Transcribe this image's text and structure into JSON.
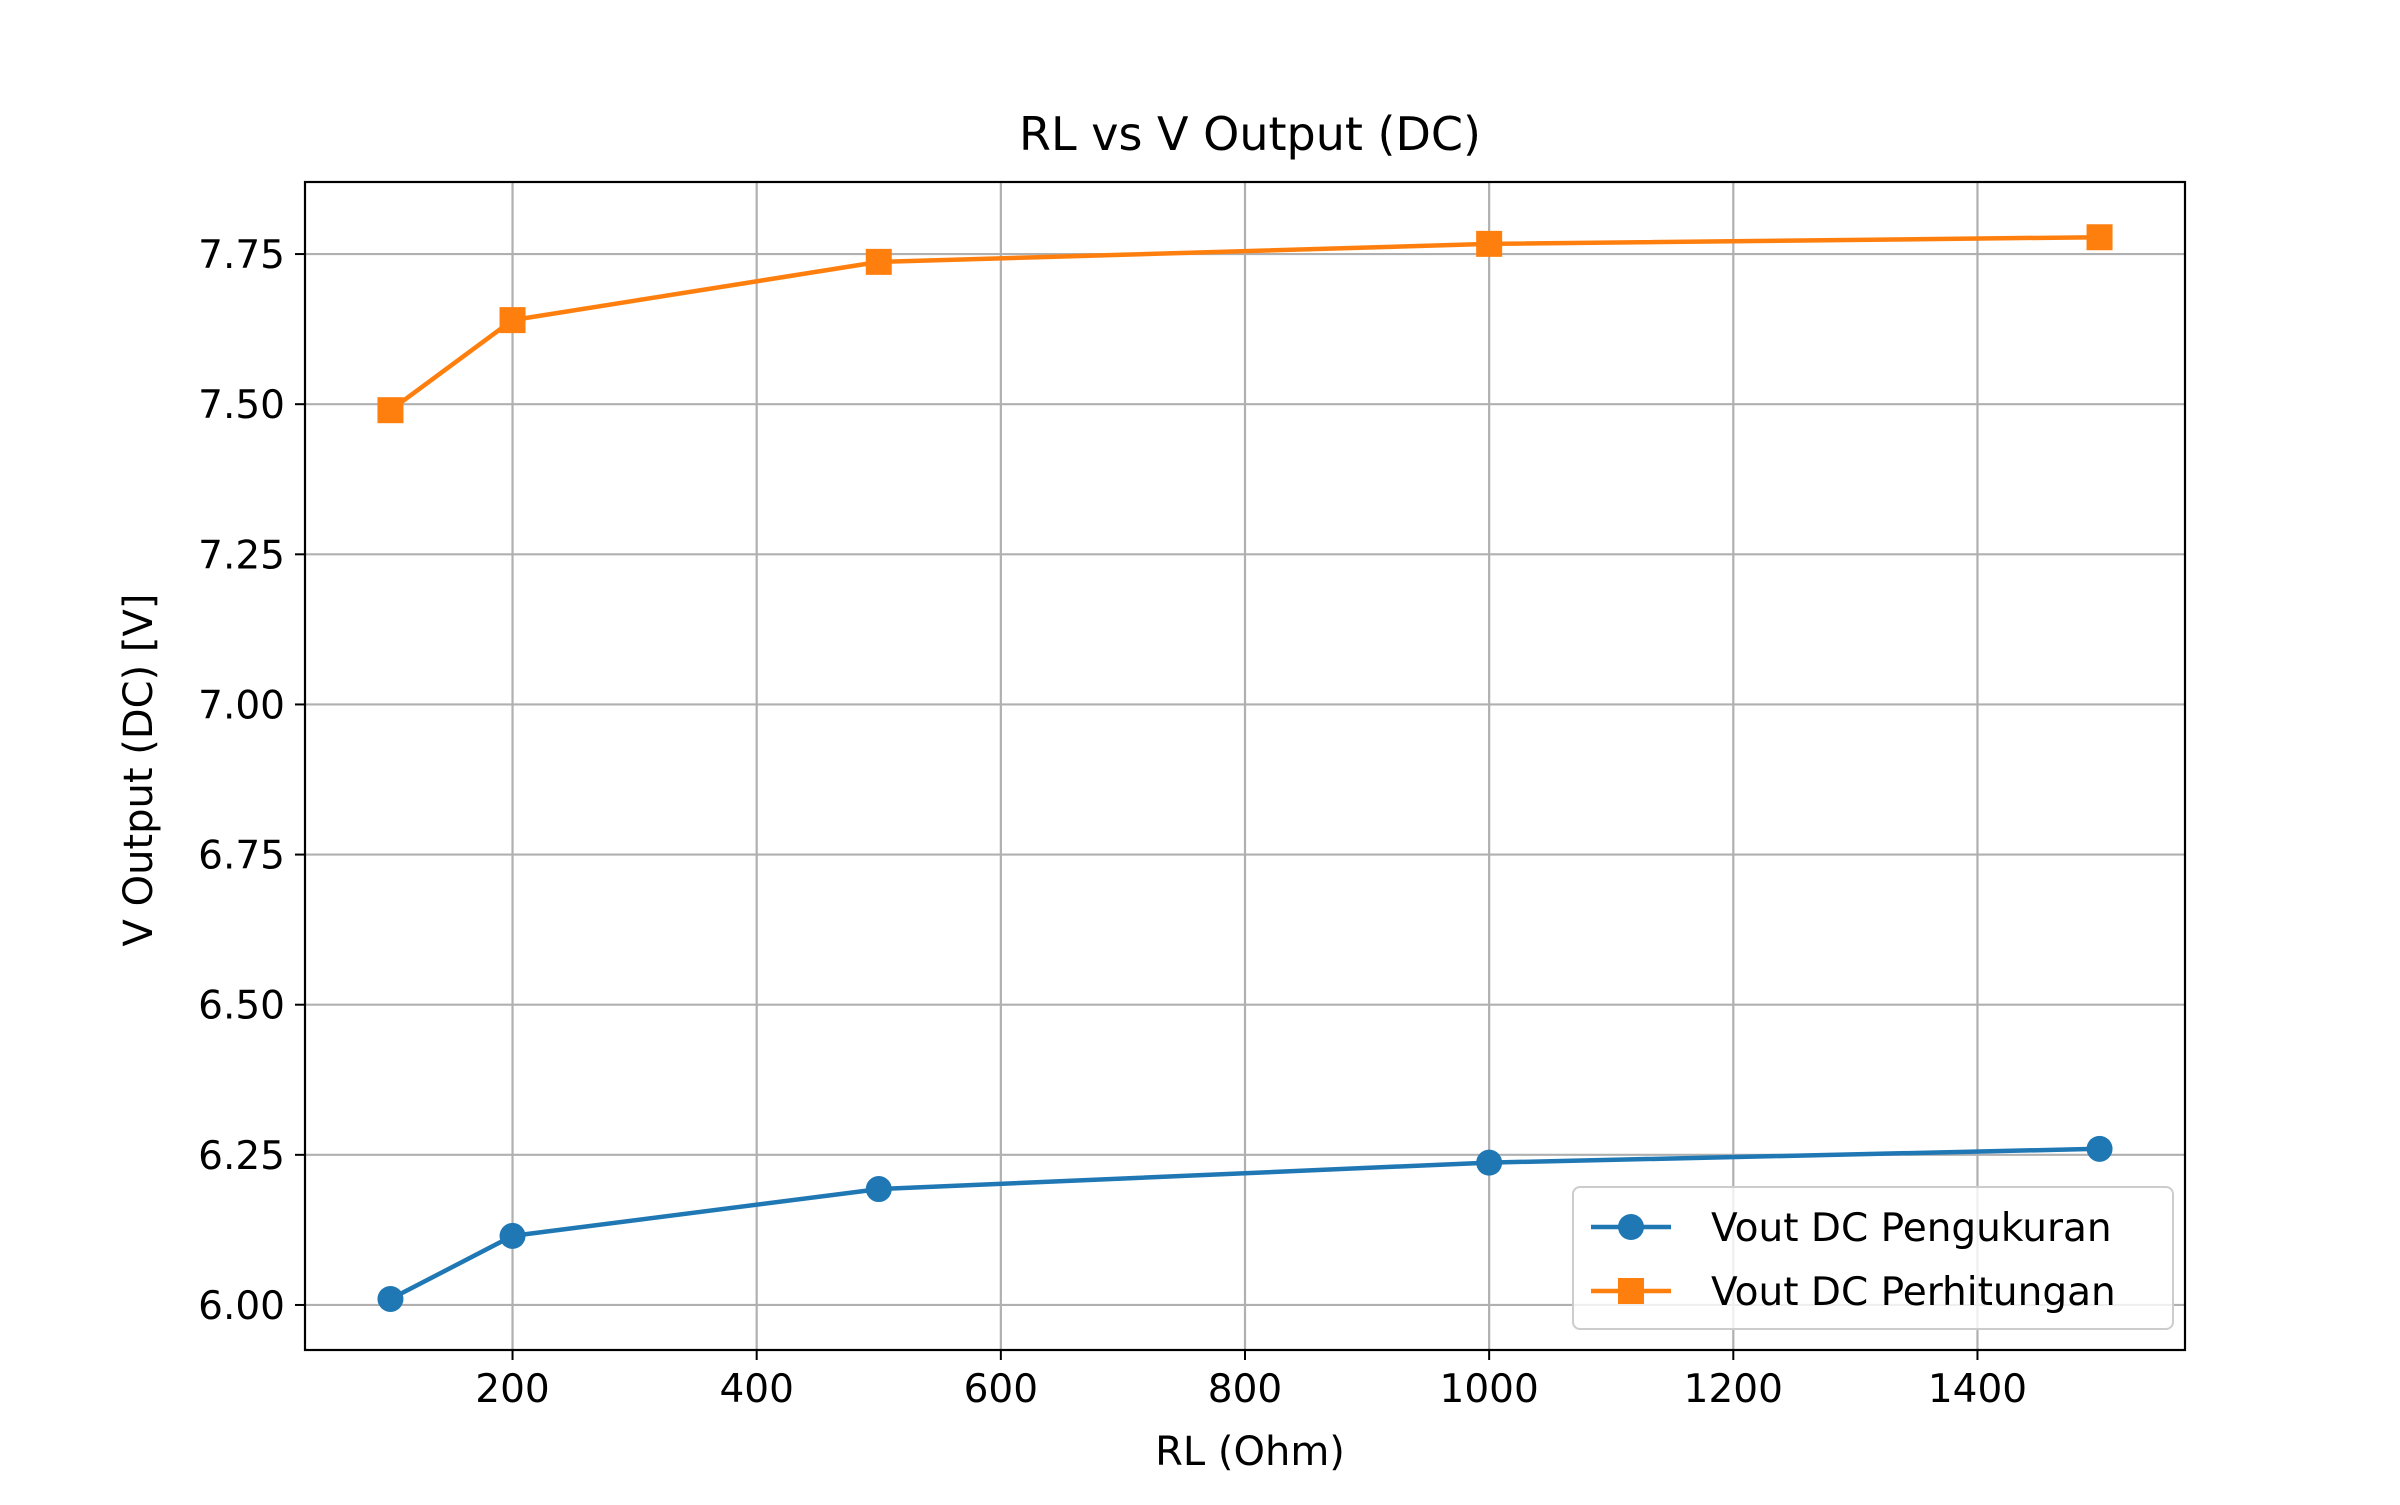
{
  "chart_data": {
    "type": "line",
    "title": "RL vs V Output (DC)",
    "xlabel": "RL (Ohm)",
    "ylabel": "V Output (DC) [V]",
    "xlim": [
      30,
      1570
    ],
    "ylim": [
      5.925,
      7.87
    ],
    "xticks": [
      200,
      400,
      600,
      800,
      1000,
      1200,
      1400
    ],
    "xtick_labels": [
      "200",
      "400",
      "600",
      "800",
      "1000",
      "1200",
      "1400"
    ],
    "yticks": [
      6.0,
      6.25,
      6.5,
      6.75,
      7.0,
      7.25,
      7.5,
      7.75
    ],
    "ytick_labels": [
      "6.00",
      "6.25",
      "6.50",
      "6.75",
      "7.00",
      "7.25",
      "7.50",
      "7.75"
    ],
    "grid": true,
    "legend_position": "lower-right",
    "x": [
      100,
      200,
      500,
      1000,
      1500
    ],
    "series": [
      {
        "name": "Vout DC Pengukuran",
        "values": [
          6.01,
          6.115,
          6.193,
          6.237,
          6.26
        ],
        "color": "#1f77b4",
        "marker": "circle"
      },
      {
        "name": "Vout DC Perhitungan",
        "values": [
          7.49,
          7.64,
          7.737,
          7.767,
          7.778
        ],
        "color": "#ff7f0e",
        "marker": "square"
      }
    ]
  }
}
